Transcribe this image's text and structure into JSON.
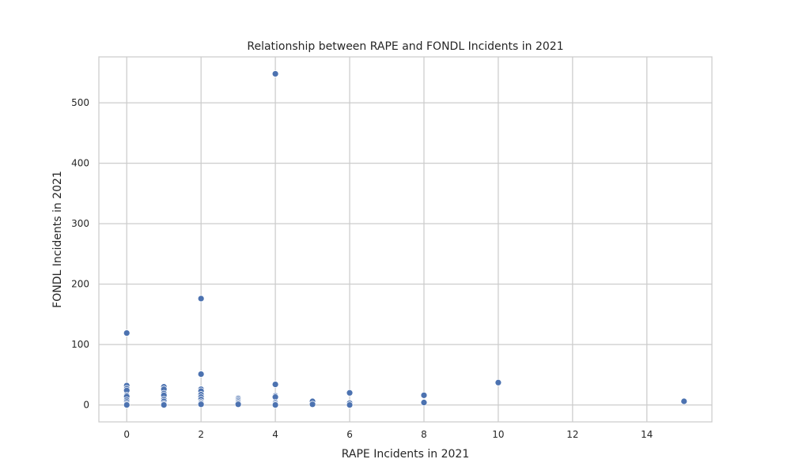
{
  "chart_data": {
    "type": "scatter",
    "title": "Relationship between RAPE and FONDL Incidents in 2021",
    "xlabel": "RAPE Incidents in 2021",
    "ylabel": "FONDL Incidents in 2021",
    "xlim": [
      -0.75,
      15.75
    ],
    "ylim": [
      -28,
      576
    ],
    "xticks": [
      0,
      2,
      4,
      6,
      8,
      10,
      12,
      14
    ],
    "yticks": [
      0,
      100,
      200,
      300,
      400,
      500
    ],
    "grid": true,
    "marker_color": "#4c72b0",
    "points": [
      {
        "x": 0,
        "y": 119
      },
      {
        "x": 0,
        "y": 32
      },
      {
        "x": 0,
        "y": 27
      },
      {
        "x": 0,
        "y": 24
      },
      {
        "x": 0,
        "y": 16
      },
      {
        "x": 0,
        "y": 14
      },
      {
        "x": 0,
        "y": 8
      },
      {
        "x": 0,
        "y": 5
      },
      {
        "x": 0,
        "y": 2
      },
      {
        "x": 0,
        "y": 0
      },
      {
        "x": 1,
        "y": 30
      },
      {
        "x": 1,
        "y": 26
      },
      {
        "x": 1,
        "y": 19
      },
      {
        "x": 1,
        "y": 16
      },
      {
        "x": 1,
        "y": 9
      },
      {
        "x": 1,
        "y": 6
      },
      {
        "x": 1,
        "y": 2
      },
      {
        "x": 1,
        "y": 0
      },
      {
        "x": 2,
        "y": 176
      },
      {
        "x": 2,
        "y": 51
      },
      {
        "x": 2,
        "y": 26
      },
      {
        "x": 2,
        "y": 23
      },
      {
        "x": 2,
        "y": 17
      },
      {
        "x": 2,
        "y": 13
      },
      {
        "x": 2,
        "y": 9
      },
      {
        "x": 2,
        "y": 5
      },
      {
        "x": 2,
        "y": 3
      },
      {
        "x": 2,
        "y": 1
      },
      {
        "x": 3,
        "y": 11
      },
      {
        "x": 3,
        "y": 9
      },
      {
        "x": 3,
        "y": 7
      },
      {
        "x": 3,
        "y": 5
      },
      {
        "x": 3,
        "y": 3
      },
      {
        "x": 3,
        "y": 1
      },
      {
        "x": 4,
        "y": 548
      },
      {
        "x": 4,
        "y": 34
      },
      {
        "x": 4,
        "y": 15
      },
      {
        "x": 4,
        "y": 13
      },
      {
        "x": 4,
        "y": 4
      },
      {
        "x": 4,
        "y": 2
      },
      {
        "x": 4,
        "y": 0
      },
      {
        "x": 5,
        "y": 6
      },
      {
        "x": 5,
        "y": 1
      },
      {
        "x": 6,
        "y": 20
      },
      {
        "x": 6,
        "y": 3
      },
      {
        "x": 6,
        "y": 0
      },
      {
        "x": 8,
        "y": 16
      },
      {
        "x": 8,
        "y": 4
      },
      {
        "x": 10,
        "y": 37
      },
      {
        "x": 15,
        "y": 6
      }
    ]
  }
}
